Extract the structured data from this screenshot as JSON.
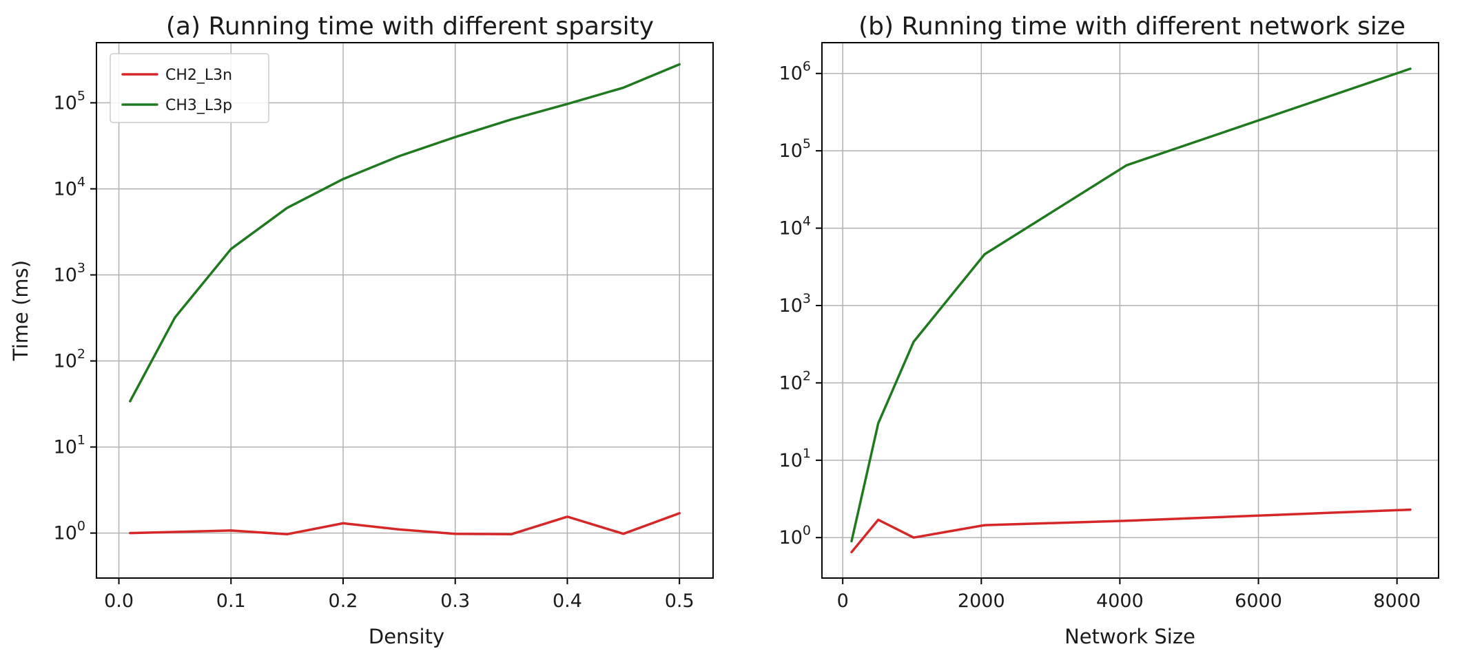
{
  "colors": {
    "CH2_L3n": "#d62728",
    "CH3_L3p": "#1f7a1f"
  },
  "chart_data": [
    {
      "type": "line",
      "title": "(a) Running time with different sparsity",
      "xlabel": "Density",
      "ylabel": "Time (ms)",
      "yscale": "log",
      "xlim": [
        -0.02,
        0.53
      ],
      "ylim": [
        0.3,
        500000
      ],
      "xticks": [
        0.0,
        0.1,
        0.2,
        0.3,
        0.4,
        0.5
      ],
      "xtick_labels": [
        "0.0",
        "0.1",
        "0.2",
        "0.3",
        "0.4",
        "0.5"
      ],
      "yticks": [
        1,
        10,
        100,
        1000,
        10000,
        100000
      ],
      "ytick_exponents": [
        "0",
        "1",
        "2",
        "3",
        "4",
        "5"
      ],
      "grid": true,
      "legend": "top-left",
      "series": [
        {
          "name": "CH2_L3n",
          "x": [
            0.01,
            0.05,
            0.1,
            0.15,
            0.2,
            0.25,
            0.3,
            0.35,
            0.4,
            0.45,
            0.5
          ],
          "y": [
            1.0,
            1.03,
            1.07,
            0.97,
            1.3,
            1.1,
            0.98,
            0.97,
            1.55,
            0.98,
            1.7
          ]
        },
        {
          "name": "CH3_L3p",
          "x": [
            0.01,
            0.05,
            0.1,
            0.15,
            0.2,
            0.25,
            0.3,
            0.35,
            0.4,
            0.45,
            0.5
          ],
          "y": [
            34,
            320,
            2000,
            6000,
            13000,
            24000,
            40000,
            64000,
            97000,
            150000,
            280000
          ]
        }
      ]
    },
    {
      "type": "line",
      "title": "(b) Running time with different network size",
      "xlabel": "Network Size",
      "ylabel": "",
      "yscale": "log",
      "xlim": [
        -300,
        8600
      ],
      "ylim": [
        0.3,
        2500000
      ],
      "xticks": [
        0,
        2000,
        4000,
        6000,
        8000
      ],
      "xtick_labels": [
        "0",
        "2000",
        "4000",
        "6000",
        "8000"
      ],
      "yticks": [
        1,
        10,
        100,
        1000,
        10000,
        100000,
        1000000
      ],
      "ytick_exponents": [
        "0",
        "1",
        "2",
        "3",
        "4",
        "5",
        "6"
      ],
      "grid": true,
      "legend": "none",
      "series": [
        {
          "name": "CH2_L3n",
          "x": [
            128,
            512,
            1024,
            2048,
            4096,
            8192
          ],
          "y": [
            0.65,
            1.7,
            1.0,
            1.45,
            1.65,
            2.3
          ]
        },
        {
          "name": "CH3_L3p",
          "x": [
            128,
            512,
            1024,
            2048,
            4096,
            8192
          ],
          "y": [
            0.9,
            30,
            340,
            4600,
            65000,
            1150000
          ]
        }
      ]
    }
  ]
}
